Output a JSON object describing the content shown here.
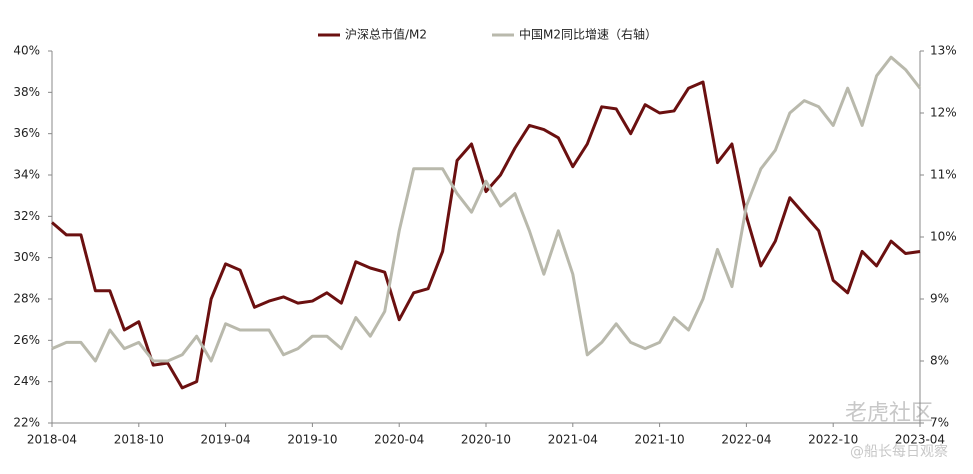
{
  "chart_data": {
    "type": "line",
    "categories": [
      "2018-04",
      null,
      null,
      null,
      null,
      null,
      "2018-10",
      null,
      null,
      null,
      null,
      null,
      "2019-04",
      null,
      null,
      null,
      null,
      null,
      "2019-10",
      null,
      null,
      null,
      null,
      null,
      "2020-04",
      null,
      null,
      null,
      null,
      null,
      "2020-10",
      null,
      null,
      null,
      null,
      null,
      "2021-04",
      null,
      null,
      null,
      null,
      null,
      "2021-10",
      null,
      null,
      null,
      null,
      null,
      "2022-04",
      null,
      null,
      null,
      null,
      null,
      "2022-10",
      null,
      null,
      null,
      null,
      null,
      "2023-04"
    ],
    "series": [
      {
        "name": "沪深总市值/M2",
        "color": "#6b1010",
        "axis": "y",
        "values": [
          31.7,
          31.1,
          31.1,
          28.4,
          28.4,
          26.5,
          26.9,
          24.8,
          24.9,
          23.7,
          24.0,
          28.0,
          29.7,
          29.4,
          27.6,
          27.9,
          28.1,
          27.8,
          27.9,
          28.3,
          27.8,
          29.8,
          29.5,
          29.3,
          27.0,
          28.3,
          28.5,
          30.3,
          34.7,
          35.5,
          33.2,
          34.0,
          35.3,
          36.4,
          36.2,
          35.8,
          34.4,
          35.5,
          37.3,
          37.2,
          36.0,
          37.4,
          37.0,
          37.1,
          38.2,
          38.5,
          34.6,
          35.5,
          32.0,
          29.6,
          30.8,
          32.9,
          32.1,
          31.3,
          28.9,
          28.3,
          30.3,
          29.6,
          30.8,
          30.2,
          30.3
        ]
      },
      {
        "name": "中国M2同比增速（右轴）",
        "color": "#b9b9ac",
        "axis": "y2",
        "values": [
          8.2,
          8.3,
          8.3,
          8.0,
          8.5,
          8.2,
          8.3,
          8.0,
          8.0,
          8.1,
          8.4,
          8.0,
          8.6,
          8.5,
          8.5,
          8.5,
          8.1,
          8.2,
          8.4,
          8.4,
          8.2,
          8.7,
          8.4,
          8.8,
          10.1,
          11.1,
          11.1,
          11.1,
          10.7,
          10.4,
          10.9,
          10.5,
          10.7,
          10.1,
          9.4,
          10.1,
          9.4,
          8.1,
          8.3,
          8.6,
          8.3,
          8.2,
          8.3,
          8.7,
          8.5,
          9.0,
          9.8,
          9.2,
          10.5,
          11.1,
          11.4,
          12.0,
          12.2,
          12.1,
          11.8,
          12.4,
          11.8,
          12.6,
          12.9,
          12.7,
          12.4
        ]
      }
    ],
    "ylim": [
      22,
      40
    ],
    "yticks": [
      {
        "value": 22,
        "label": "22%"
      },
      {
        "value": 24,
        "label": "24%"
      },
      {
        "value": 26,
        "label": "26%"
      },
      {
        "value": 28,
        "label": "28%"
      },
      {
        "value": 30,
        "label": "30%"
      },
      {
        "value": 32,
        "label": "32%"
      },
      {
        "value": 34,
        "label": "34%"
      },
      {
        "value": 36,
        "label": "36%"
      },
      {
        "value": 38,
        "label": "38%"
      },
      {
        "value": 40,
        "label": "40%"
      }
    ],
    "y2lim": [
      7,
      13
    ],
    "y2ticks": [
      {
        "value": 7,
        "label": "7%"
      },
      {
        "value": 8,
        "label": "8%"
      },
      {
        "value": 9,
        "label": "9%"
      },
      {
        "value": 10,
        "label": "10%"
      },
      {
        "value": 11,
        "label": "11%"
      },
      {
        "value": 12,
        "label": "12%"
      },
      {
        "value": 13,
        "label": "13%"
      }
    ],
    "legend": "top",
    "grid": false
  },
  "watermark": {
    "brand": "老虎社区",
    "author": "@船长每日观察"
  }
}
